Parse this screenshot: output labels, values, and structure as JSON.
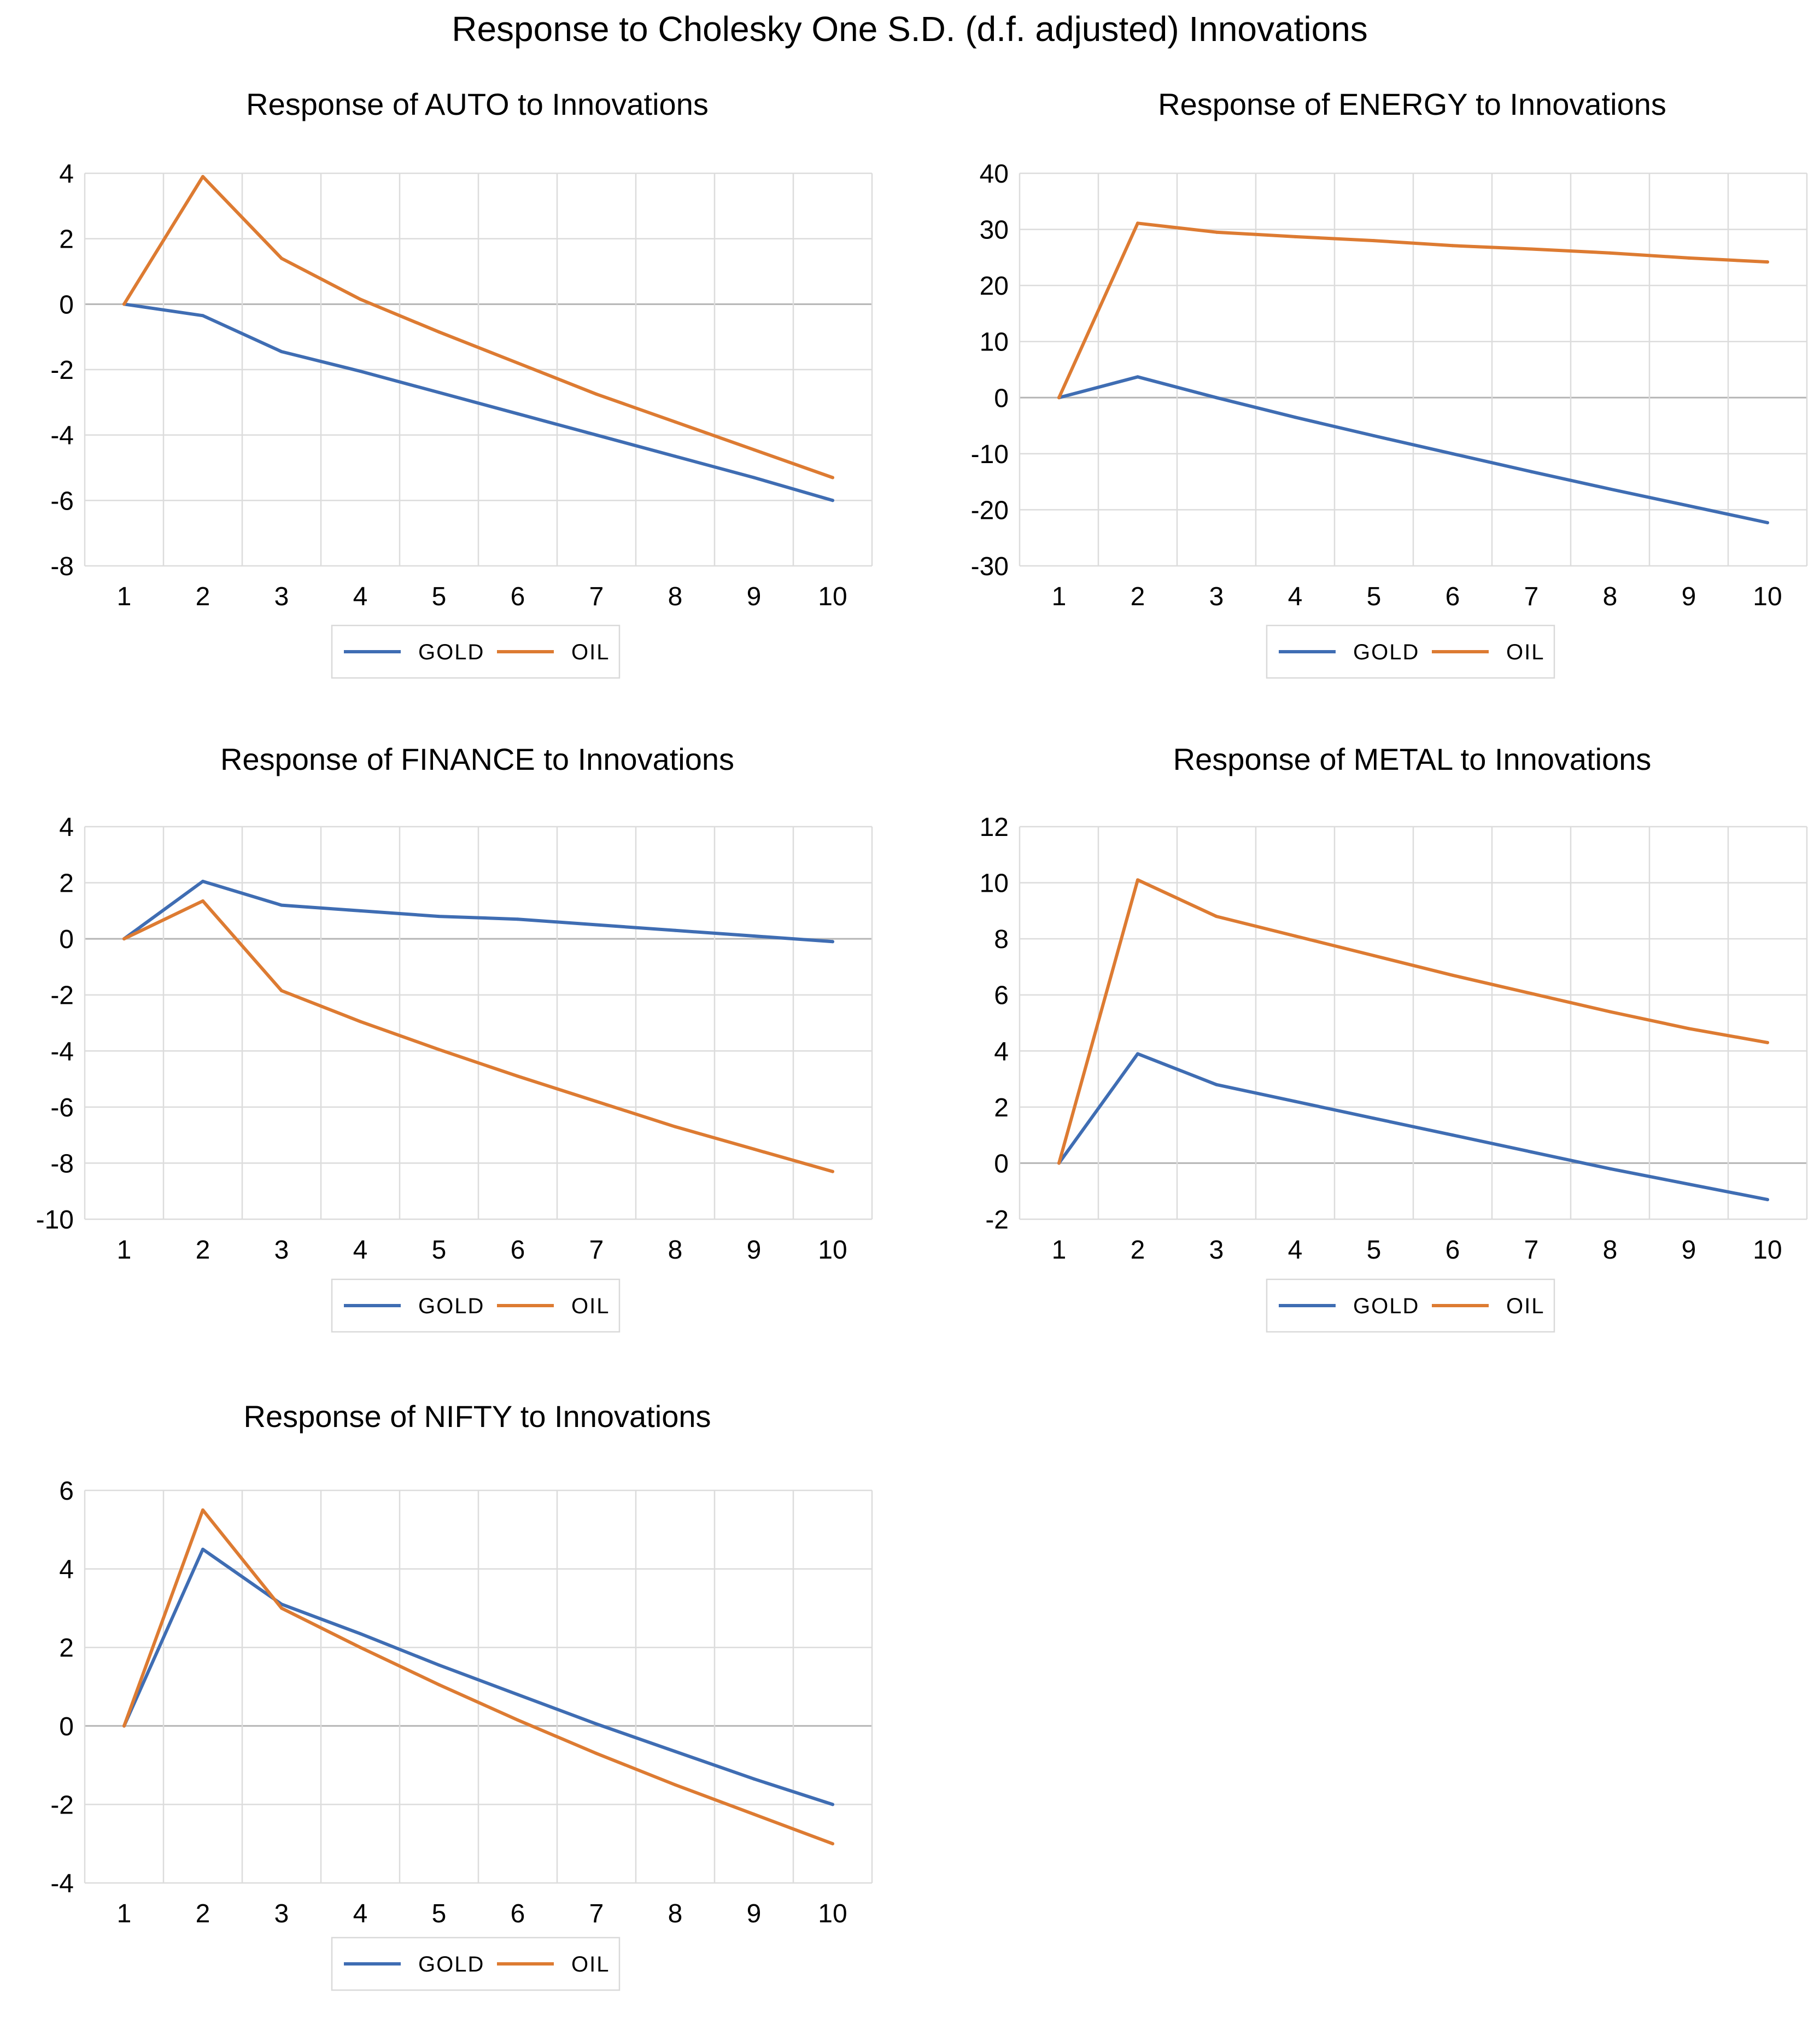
{
  "figure": {
    "title": "Response to Cholesky One S.D. (d.f. adjusted) Innovations"
  },
  "colors": {
    "gold": "#3f6db3",
    "oil": "#dd7b32",
    "grid": "#dcdcdc",
    "zero_line": "#b5b5b5"
  },
  "chart_data": [
    {
      "type": "line",
      "title": "Response of AUTO to Innovations",
      "x": [
        1,
        2,
        3,
        4,
        5,
        6,
        7,
        8,
        9,
        10
      ],
      "ylim": [
        -8,
        4
      ],
      "yticks": [
        4,
        2,
        0,
        -2,
        -4,
        -6,
        -8
      ],
      "legend": "bottom",
      "series": [
        {
          "name": "GOLD",
          "values": [
            0,
            -0.35,
            -1.45,
            -2.05,
            -2.7,
            -3.35,
            -4.0,
            -4.65,
            -5.3,
            -6.0
          ]
        },
        {
          "name": "OIL",
          "values": [
            0,
            3.9,
            1.4,
            0.15,
            -0.85,
            -1.8,
            -2.75,
            -3.6,
            -4.45,
            -5.3
          ]
        }
      ]
    },
    {
      "type": "line",
      "title": "Response of ENERGY to Innovations",
      "x": [
        1,
        2,
        3,
        4,
        5,
        6,
        7,
        8,
        9,
        10
      ],
      "ylim": [
        -30,
        40
      ],
      "yticks": [
        40,
        30,
        20,
        10,
        0,
        -10,
        -20,
        -30
      ],
      "legend": "bottom",
      "series": [
        {
          "name": "GOLD",
          "values": [
            0,
            3.7,
            0,
            -3.5,
            -6.8,
            -10.0,
            -13.2,
            -16.3,
            -19.3,
            -22.3
          ]
        },
        {
          "name": "OIL",
          "values": [
            0,
            31.1,
            29.5,
            28.7,
            28.0,
            27.1,
            26.5,
            25.8,
            24.9,
            24.2
          ]
        }
      ]
    },
    {
      "type": "line",
      "title": "Response of FINANCE to Innovations",
      "x": [
        1,
        2,
        3,
        4,
        5,
        6,
        7,
        8,
        9,
        10
      ],
      "ylim": [
        -10,
        4
      ],
      "yticks": [
        4,
        2,
        0,
        -2,
        -4,
        -6,
        -8,
        -10
      ],
      "legend": "bottom",
      "series": [
        {
          "name": "GOLD",
          "values": [
            0,
            2.05,
            1.2,
            1.0,
            0.8,
            0.7,
            0.5,
            0.3,
            0.1,
            -0.1
          ]
        },
        {
          "name": "OIL",
          "values": [
            0,
            1.35,
            -1.85,
            -2.95,
            -3.95,
            -4.9,
            -5.8,
            -6.7,
            -7.5,
            -8.3
          ]
        }
      ]
    },
    {
      "type": "line",
      "title": "Response of METAL to Innovations",
      "x": [
        1,
        2,
        3,
        4,
        5,
        6,
        7,
        8,
        9,
        10
      ],
      "ylim": [
        -2,
        12
      ],
      "yticks": [
        12,
        10,
        8,
        6,
        4,
        2,
        0,
        -2
      ],
      "legend": "bottom",
      "series": [
        {
          "name": "GOLD",
          "values": [
            0,
            3.9,
            2.8,
            2.2,
            1.6,
            1.0,
            0.4,
            -0.2,
            -0.75,
            -1.3
          ]
        },
        {
          "name": "OIL",
          "values": [
            0,
            10.1,
            8.8,
            8.1,
            7.4,
            6.7,
            6.05,
            5.4,
            4.8,
            4.3
          ]
        }
      ]
    },
    {
      "type": "line",
      "title": "Response of NIFTY to Innovations",
      "x": [
        1,
        2,
        3,
        4,
        5,
        6,
        7,
        8,
        9,
        10
      ],
      "ylim": [
        -4,
        6
      ],
      "yticks": [
        6,
        4,
        2,
        0,
        -2,
        -4
      ],
      "legend": "bottom",
      "series": [
        {
          "name": "GOLD",
          "values": [
            0,
            4.5,
            3.1,
            2.35,
            1.55,
            0.8,
            0.05,
            -0.65,
            -1.35,
            -2.0
          ]
        },
        {
          "name": "OIL",
          "values": [
            0,
            5.5,
            3.0,
            2.0,
            1.05,
            0.15,
            -0.7,
            -1.5,
            -2.25,
            -3.0
          ]
        }
      ]
    }
  ]
}
